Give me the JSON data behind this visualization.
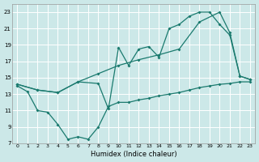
{
  "bg_color": "#cce8e8",
  "grid_color": "#ffffff",
  "line_color": "#1a7a6e",
  "xlabel": "Humidex (Indice chaleur)",
  "xlim": [
    -0.5,
    23.5
  ],
  "ylim": [
    7,
    24
  ],
  "yticks": [
    7,
    9,
    11,
    13,
    15,
    17,
    19,
    21,
    23
  ],
  "xticks": [
    0,
    1,
    2,
    3,
    4,
    5,
    6,
    7,
    8,
    9,
    10,
    11,
    12,
    13,
    14,
    15,
    16,
    17,
    18,
    19,
    20,
    21,
    22,
    23
  ],
  "line_bottom_x": [
    0,
    1,
    2,
    3,
    4,
    5,
    6,
    7,
    8,
    9,
    10,
    11,
    12,
    13,
    14,
    15,
    16,
    17,
    18,
    19,
    20,
    21,
    22,
    23
  ],
  "line_bottom_y": [
    14.0,
    13.3,
    11.0,
    10.8,
    9.3,
    7.5,
    7.8,
    7.5,
    9.0,
    11.5,
    12.0,
    12.0,
    12.3,
    12.5,
    12.8,
    13.0,
    13.2,
    13.5,
    13.8,
    14.0,
    14.2,
    14.3,
    14.5,
    14.5
  ],
  "line_mid_x": [
    0,
    2,
    4,
    6,
    8,
    10,
    12,
    14,
    16,
    18,
    20,
    21,
    22,
    23
  ],
  "line_mid_y": [
    14.2,
    13.5,
    13.2,
    14.5,
    15.5,
    16.5,
    17.2,
    17.8,
    18.5,
    21.8,
    23.0,
    20.5,
    15.2,
    14.8
  ],
  "line_top_x": [
    0,
    2,
    4,
    6,
    8,
    9,
    10,
    11,
    12,
    13,
    14,
    15,
    16,
    17,
    18,
    19,
    20,
    21,
    22,
    23
  ],
  "line_top_y": [
    14.2,
    13.5,
    13.2,
    14.5,
    14.3,
    11.2,
    18.7,
    16.5,
    18.5,
    18.8,
    17.5,
    21.0,
    21.5,
    22.5,
    23.0,
    23.0,
    21.5,
    20.2,
    15.2,
    14.8
  ]
}
